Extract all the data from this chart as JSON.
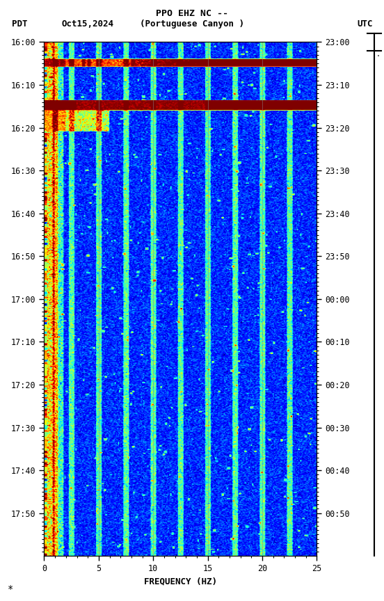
{
  "title_line1": "PPO EHZ NC --",
  "xlabel": "FREQUENCY (HZ)",
  "left_yticks": [
    "16:00",
    "16:10",
    "16:20",
    "16:30",
    "16:40",
    "16:50",
    "17:00",
    "17:10",
    "17:20",
    "17:30",
    "17:40",
    "17:50"
  ],
  "right_yticks": [
    "23:00",
    "23:10",
    "23:20",
    "23:30",
    "23:40",
    "23:50",
    "00:00",
    "00:10",
    "00:20",
    "00:30",
    "00:40",
    "00:50"
  ],
  "xticks": [
    0,
    5,
    10,
    15,
    20,
    25
  ],
  "colormap": "jet",
  "fig_width": 5.52,
  "fig_height": 8.64,
  "vmin": -200,
  "vmax": -80
}
